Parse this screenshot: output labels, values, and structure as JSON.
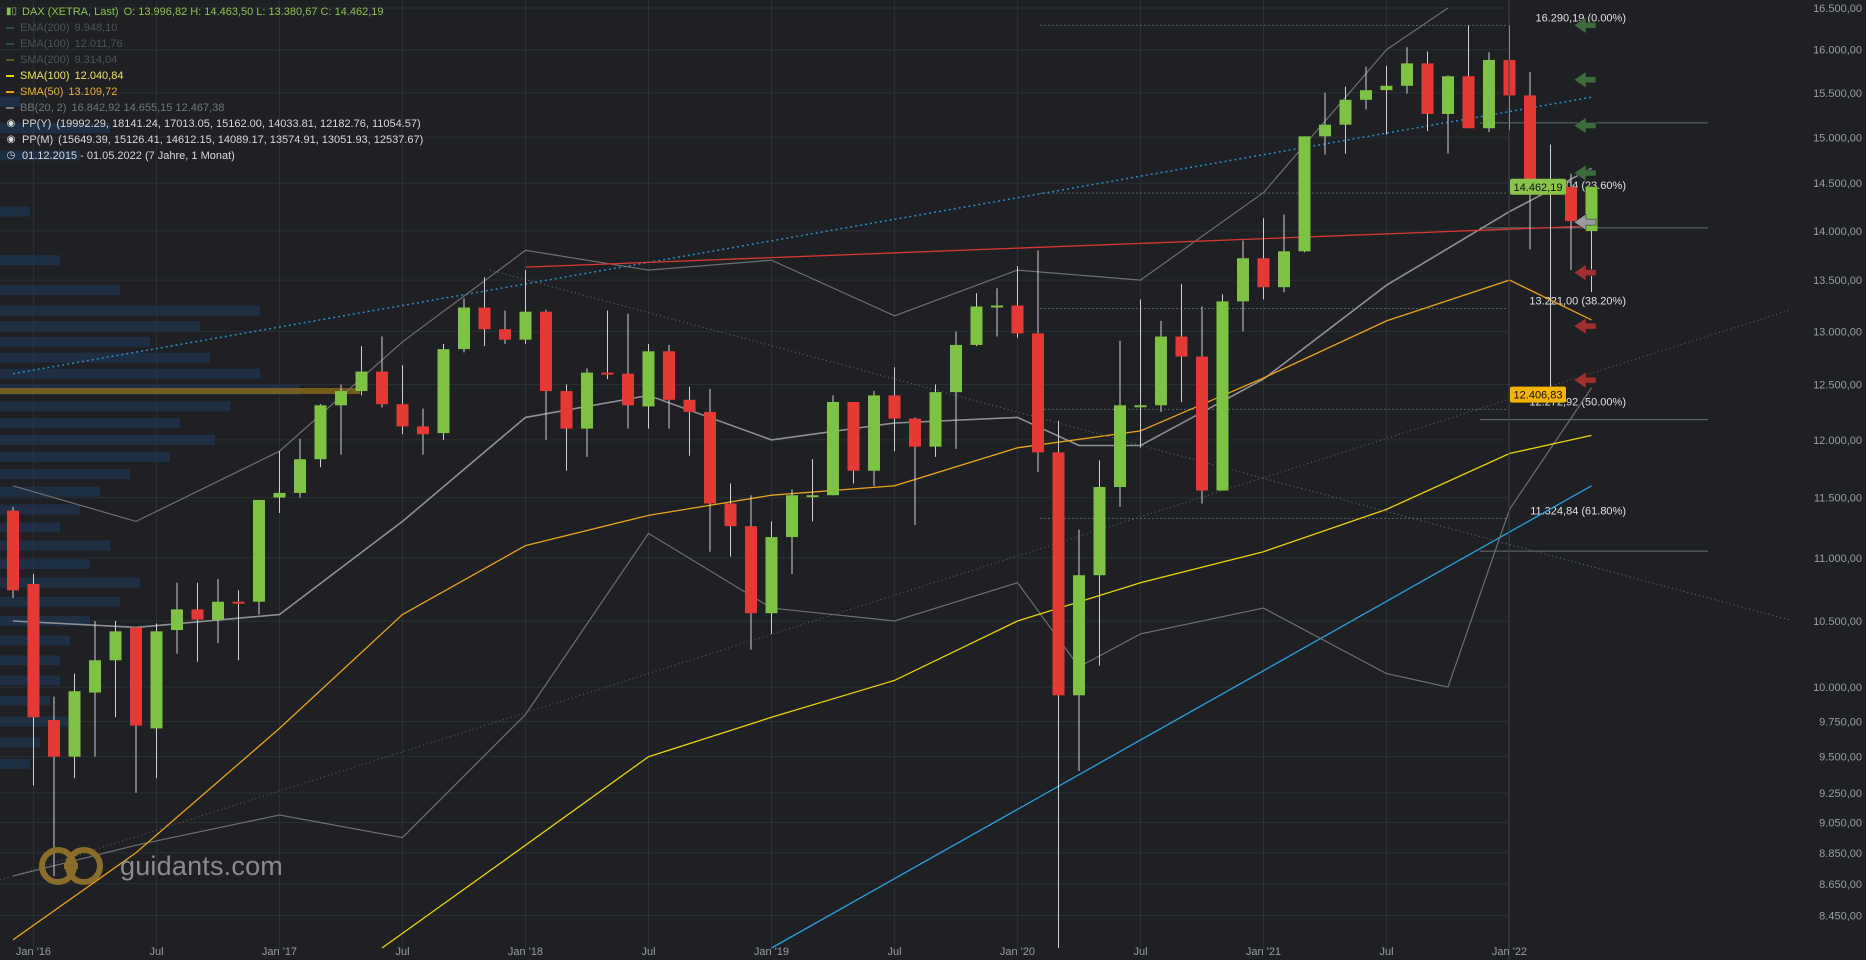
{
  "header": {
    "title": "DAX (XETRA, Last)",
    "ohlc": "O: 13.996,82  H: 14.463,50  L: 13.380,67  C: 14.462,19"
  },
  "legend": [
    {
      "label": "EMA(200)",
      "value": "9.948,10",
      "color": "#2f4a5a",
      "dim": true
    },
    {
      "label": "EMA(100)",
      "value": "12.011,76",
      "color": "#2f4a5a",
      "dim": true
    },
    {
      "label": "SMA(200)",
      "value": "9.314,04",
      "color": "#5c5a1e",
      "dim": true
    },
    {
      "label": "SMA(100)",
      "value": "12.040,84",
      "color": "#e6d200",
      "dim": false
    },
    {
      "label": "SMA(50)",
      "value": "13.109,72",
      "color": "#e8a317",
      "dim": false
    },
    {
      "label": "BB(20, 2)",
      "value": "16.842,92  14.655,15  12.467,38",
      "color": "#7a7a7a",
      "dim": true
    }
  ],
  "pivots": [
    {
      "label": "PP(Y)",
      "value": "(19992.29, 18141.24, 17013.05, 15162.00, 14033.81, 12182.76, 11054.57)"
    },
    {
      "label": "PP(M)",
      "value": "(15649.39, 15126.41, 14612.15, 14089.17, 13574.91, 13051.93, 12537.67)"
    }
  ],
  "period": "01.12.2015 - 01.05.2022   (7 Jahre, 1 Monat)",
  "watermark": "guidants.com",
  "colors": {
    "up": "#7dc242",
    "down": "#e53935",
    "bg": "#1e2024",
    "grid": "#2b2e33"
  },
  "chart_data": {
    "type": "candlestick",
    "title": "DAX (XETRA, Last)",
    "scale": "log",
    "ylim": [
      8250,
      16500
    ],
    "y_ticks": [
      8450,
      8650,
      8850,
      9050,
      9250,
      9500,
      9750,
      10000,
      10500,
      11000,
      11500,
      12000,
      12500,
      13000,
      13500,
      14000,
      14500,
      15000,
      15500,
      16000,
      16500
    ],
    "y_tick_labels": [
      "8.450,00",
      "8.650,00",
      "8.850,00",
      "9.050,00",
      "9.250,00",
      "9.500,00",
      "9.750,00",
      "10.000,00",
      "10.500,00",
      "11.000,00",
      "11.500,00",
      "12.000,00",
      "12.500,00",
      "13.000,00",
      "13.500,00",
      "14.000,00",
      "14.500,00",
      "15.000,00",
      "15.500,00",
      "16.000,00",
      "16.500,00"
    ],
    "x_range": [
      "2015-12",
      "2022-05"
    ],
    "x_labels": [
      {
        "month": "2016-01",
        "label": "Jan '16"
      },
      {
        "month": "2016-07",
        "label": "Jul"
      },
      {
        "month": "2017-01",
        "label": "Jan '17"
      },
      {
        "month": "2017-07",
        "label": "Jul"
      },
      {
        "month": "2018-01",
        "label": "Jan '18"
      },
      {
        "month": "2018-07",
        "label": "Jul"
      },
      {
        "month": "2019-01",
        "label": "Jan '19"
      },
      {
        "month": "2019-07",
        "label": "Jul"
      },
      {
        "month": "2020-01",
        "label": "Jan '20"
      },
      {
        "month": "2020-07",
        "label": "Jul"
      },
      {
        "month": "2021-01",
        "label": "Jan '21"
      },
      {
        "month": "2021-07",
        "label": "Jul"
      },
      {
        "month": "2022-01",
        "label": "Jan '22"
      }
    ],
    "candles": [
      {
        "m": "2015-12",
        "o": 11390,
        "c": 10740,
        "h": 11420,
        "l": 10680
      },
      {
        "m": "2016-01",
        "o": 10790,
        "c": 9780,
        "h": 10870,
        "l": 9300
      },
      {
        "m": "2016-02",
        "o": 9760,
        "c": 9500,
        "h": 9930,
        "l": 8700
      },
      {
        "m": "2016-03",
        "o": 9500,
        "c": 9970,
        "h": 10100,
        "l": 9350
      },
      {
        "m": "2016-04",
        "o": 9960,
        "c": 10200,
        "h": 10500,
        "l": 9500
      },
      {
        "m": "2016-05",
        "o": 10200,
        "c": 10420,
        "h": 10500,
        "l": 9780
      },
      {
        "m": "2016-06",
        "o": 10450,
        "c": 9720,
        "h": 10450,
        "l": 9250
      },
      {
        "m": "2016-07",
        "o": 9700,
        "c": 10420,
        "h": 10480,
        "l": 9350
      },
      {
        "m": "2016-08",
        "o": 10430,
        "c": 10590,
        "h": 10800,
        "l": 10250
      },
      {
        "m": "2016-09",
        "o": 10590,
        "c": 10510,
        "h": 10800,
        "l": 10190
      },
      {
        "m": "2016-10",
        "o": 10510,
        "c": 10650,
        "h": 10830,
        "l": 10330
      },
      {
        "m": "2016-11",
        "o": 10650,
        "c": 10640,
        "h": 10740,
        "l": 10200
      },
      {
        "m": "2016-12",
        "o": 10650,
        "c": 11480,
        "h": 11480,
        "l": 10550
      },
      {
        "m": "2017-01",
        "o": 11500,
        "c": 11540,
        "h": 11900,
        "l": 11370
      },
      {
        "m": "2017-02",
        "o": 11540,
        "c": 11830,
        "h": 12010,
        "l": 11500
      },
      {
        "m": "2017-03",
        "o": 11830,
        "c": 12310,
        "h": 12320,
        "l": 11760
      },
      {
        "m": "2017-04",
        "o": 12310,
        "c": 12440,
        "h": 12500,
        "l": 11870
      },
      {
        "m": "2017-05",
        "o": 12440,
        "c": 12620,
        "h": 12860,
        "l": 12400
      },
      {
        "m": "2017-06",
        "o": 12620,
        "c": 12320,
        "h": 12950,
        "l": 12290
      },
      {
        "m": "2017-07",
        "o": 12320,
        "c": 12120,
        "h": 12680,
        "l": 12050
      },
      {
        "m": "2017-08",
        "o": 12120,
        "c": 12050,
        "h": 12280,
        "l": 11870
      },
      {
        "m": "2017-09",
        "o": 12060,
        "c": 12830,
        "h": 12880,
        "l": 12000
      },
      {
        "m": "2017-10",
        "o": 12830,
        "c": 13230,
        "h": 13320,
        "l": 12800
      },
      {
        "m": "2017-11",
        "o": 13230,
        "c": 13020,
        "h": 13530,
        "l": 12860
      },
      {
        "m": "2017-12",
        "o": 13020,
        "c": 12920,
        "h": 13200,
        "l": 12880
      },
      {
        "m": "2018-01",
        "o": 12920,
        "c": 13190,
        "h": 13600,
        "l": 12880
      },
      {
        "m": "2018-02",
        "o": 13190,
        "c": 12440,
        "h": 13210,
        "l": 12000
      },
      {
        "m": "2018-03",
        "o": 12440,
        "c": 12100,
        "h": 12500,
        "l": 11730
      },
      {
        "m": "2018-04",
        "o": 12100,
        "c": 12610,
        "h": 12650,
        "l": 11850
      },
      {
        "m": "2018-05",
        "o": 12610,
        "c": 12600,
        "h": 13200,
        "l": 12550
      },
      {
        "m": "2018-06",
        "o": 12600,
        "c": 12310,
        "h": 13170,
        "l": 12100
      },
      {
        "m": "2018-07",
        "o": 12300,
        "c": 12810,
        "h": 12880,
        "l": 12100
      },
      {
        "m": "2018-08",
        "o": 12810,
        "c": 12360,
        "h": 12870,
        "l": 12100
      },
      {
        "m": "2018-09",
        "o": 12360,
        "c": 12250,
        "h": 12480,
        "l": 11860
      },
      {
        "m": "2018-10",
        "o": 12250,
        "c": 11450,
        "h": 12460,
        "l": 11050
      },
      {
        "m": "2018-11",
        "o": 11450,
        "c": 11260,
        "h": 11620,
        "l": 11010
      },
      {
        "m": "2018-12",
        "o": 11260,
        "c": 10560,
        "h": 11520,
        "l": 10280
      },
      {
        "m": "2019-01",
        "o": 10560,
        "c": 11170,
        "h": 11300,
        "l": 10400
      },
      {
        "m": "2019-02",
        "o": 11170,
        "c": 11520,
        "h": 11570,
        "l": 10870
      },
      {
        "m": "2019-03",
        "o": 11520,
        "c": 11520,
        "h": 11830,
        "l": 11300
      },
      {
        "m": "2019-04",
        "o": 11520,
        "c": 12340,
        "h": 12400,
        "l": 11520
      },
      {
        "m": "2019-05",
        "o": 12340,
        "c": 11730,
        "h": 12340,
        "l": 11620
      },
      {
        "m": "2019-06",
        "o": 11730,
        "c": 12400,
        "h": 12440,
        "l": 11600
      },
      {
        "m": "2019-07",
        "o": 12400,
        "c": 12190,
        "h": 12660,
        "l": 11900
      },
      {
        "m": "2019-08",
        "o": 12190,
        "c": 11940,
        "h": 12200,
        "l": 11270
      },
      {
        "m": "2019-09",
        "o": 11940,
        "c": 12430,
        "h": 12500,
        "l": 11850
      },
      {
        "m": "2019-10",
        "o": 12430,
        "c": 12870,
        "h": 13000,
        "l": 11920
      },
      {
        "m": "2019-11",
        "o": 12870,
        "c": 13240,
        "h": 13370,
        "l": 12860
      },
      {
        "m": "2019-12",
        "o": 13240,
        "c": 13250,
        "h": 13420,
        "l": 12950
      },
      {
        "m": "2020-01",
        "o": 13250,
        "c": 12980,
        "h": 13640,
        "l": 12940
      },
      {
        "m": "2020-02",
        "o": 12980,
        "c": 11890,
        "h": 13800,
        "l": 11720
      },
      {
        "m": "2020-03",
        "o": 11890,
        "c": 9940,
        "h": 12170,
        "l": 8250
      },
      {
        "m": "2020-04",
        "o": 9940,
        "c": 10860,
        "h": 11230,
        "l": 9400
      },
      {
        "m": "2020-05",
        "o": 10860,
        "c": 11590,
        "h": 11820,
        "l": 10160
      },
      {
        "m": "2020-06",
        "o": 11590,
        "c": 12310,
        "h": 12910,
        "l": 11420
      },
      {
        "m": "2020-07",
        "o": 12310,
        "c": 12310,
        "h": 13310,
        "l": 11930
      },
      {
        "m": "2020-08",
        "o": 12310,
        "c": 12950,
        "h": 13100,
        "l": 12250
      },
      {
        "m": "2020-09",
        "o": 12950,
        "c": 12760,
        "h": 13460,
        "l": 12340
      },
      {
        "m": "2020-10",
        "o": 12760,
        "c": 11560,
        "h": 13240,
        "l": 11450
      },
      {
        "m": "2020-11",
        "o": 11560,
        "c": 13290,
        "h": 13360,
        "l": 11610
      },
      {
        "m": "2020-12",
        "o": 13290,
        "c": 13720,
        "h": 13900,
        "l": 13000
      },
      {
        "m": "2021-01",
        "o": 13720,
        "c": 13430,
        "h": 14130,
        "l": 13310
      },
      {
        "m": "2021-02",
        "o": 13430,
        "c": 13790,
        "h": 14170,
        "l": 13380
      },
      {
        "m": "2021-03",
        "o": 13790,
        "c": 15010,
        "h": 15010,
        "l": 13780
      },
      {
        "m": "2021-04",
        "o": 15010,
        "c": 15140,
        "h": 15500,
        "l": 14810
      },
      {
        "m": "2021-05",
        "o": 15140,
        "c": 15420,
        "h": 15570,
        "l": 14820
      },
      {
        "m": "2021-06",
        "o": 15420,
        "c": 15530,
        "h": 15800,
        "l": 15310
      },
      {
        "m": "2021-07",
        "o": 15530,
        "c": 15580,
        "h": 15810,
        "l": 15030
      },
      {
        "m": "2021-08",
        "o": 15580,
        "c": 15840,
        "h": 16030,
        "l": 15490
      },
      {
        "m": "2021-09",
        "o": 15840,
        "c": 15260,
        "h": 15980,
        "l": 15070
      },
      {
        "m": "2021-10",
        "o": 15260,
        "c": 15690,
        "h": 15700,
        "l": 14820
      },
      {
        "m": "2021-11",
        "o": 15690,
        "c": 15100,
        "h": 16290,
        "l": 15100
      },
      {
        "m": "2021-12",
        "o": 15100,
        "c": 15880,
        "h": 15970,
        "l": 15060
      },
      {
        "m": "2022-01",
        "o": 15880,
        "c": 15470,
        "h": 16290,
        "l": 15080
      },
      {
        "m": "2022-02",
        "o": 15470,
        "c": 14460,
        "h": 15740,
        "l": 13810
      },
      {
        "m": "2022-03",
        "o": 14460,
        "c": 14460,
        "h": 14920,
        "l": 12440
      },
      {
        "m": "2022-04",
        "o": 14460,
        "c": 14100,
        "h": 14600,
        "l": 13600
      },
      {
        "m": "2022-05",
        "o": 13997,
        "c": 14462,
        "h": 14464,
        "l": 13381
      }
    ],
    "fibonacci": [
      {
        "value": 16290.19,
        "label": "16.290,19 (0.00%)"
      },
      {
        "value": 14394.04,
        "label": "14.394,04 (23.60%)"
      },
      {
        "value": 13221.0,
        "label": "13.221,00 (38.20%)"
      },
      {
        "value": 12272.92,
        "label": "12.272,92 (50.00%)"
      },
      {
        "value": 11324.84,
        "label": "11.324,84 (61.80%)"
      }
    ],
    "price_tags": [
      {
        "value": 14462.19,
        "label": "14.462,19",
        "color": "#8bc34a"
      },
      {
        "value": 12406.83,
        "label": "12.406,83",
        "color": "#f5b400"
      }
    ],
    "lines": {
      "sma100": [
        [
          "2015-12",
          8300
        ],
        [
          "2016-06",
          8850
        ],
        [
          "2017-01",
          9700
        ],
        [
          "2017-07",
          10550
        ],
        [
          "2018-01",
          11100
        ],
        [
          "2018-07",
          11350
        ],
        [
          "2019-01",
          11520
        ],
        [
          "2019-07",
          11600
        ],
        [
          "2020-01",
          11930
        ],
        [
          "2020-07",
          12080
        ],
        [
          "2021-01",
          12560
        ],
        [
          "2021-07",
          13100
        ],
        [
          "2022-01",
          13500
        ],
        [
          "2022-05",
          13110
        ]
      ],
      "sma200": [
        [
          "2017-06",
          8250
        ],
        [
          "2018-01",
          8900
        ],
        [
          "2018-07",
          9500
        ],
        [
          "2019-01",
          9780
        ],
        [
          "2019-07",
          10050
        ],
        [
          "2020-01",
          10500
        ],
        [
          "2020-07",
          10800
        ],
        [
          "2021-01",
          11050
        ],
        [
          "2021-07",
          11400
        ],
        [
          "2022-01",
          11880
        ],
        [
          "2022-05",
          12040
        ]
      ],
      "bb_mid": [
        [
          "2015-12",
          10500
        ],
        [
          "2016-06",
          10450
        ],
        [
          "2017-01",
          10550
        ],
        [
          "2017-07",
          11300
        ],
        [
          "2018-01",
          12200
        ],
        [
          "2018-07",
          12400
        ],
        [
          "2019-01",
          12000
        ],
        [
          "2019-07",
          12150
        ],
        [
          "2020-01",
          12200
        ],
        [
          "2020-04",
          11950
        ],
        [
          "2020-07",
          11950
        ],
        [
          "2021-01",
          12550
        ],
        [
          "2021-07",
          13450
        ],
        [
          "2022-01",
          14200
        ],
        [
          "2022-05",
          14660
        ]
      ],
      "bb_upper": [
        [
          "2015-12",
          11600
        ],
        [
          "2016-06",
          11300
        ],
        [
          "2017-01",
          11900
        ],
        [
          "2017-07",
          12900
        ],
        [
          "2018-01",
          13800
        ],
        [
          "2018-07",
          13600
        ],
        [
          "2019-01",
          13700
        ],
        [
          "2019-07",
          13150
        ],
        [
          "2020-01",
          13600
        ],
        [
          "2020-07",
          13500
        ],
        [
          "2021-01",
          14400
        ],
        [
          "2021-07",
          16000
        ],
        [
          "2021-10",
          16500
        ]
      ],
      "bb_lower": [
        [
          "2015-12",
          8700
        ],
        [
          "2016-06",
          8900
        ],
        [
          "2017-01",
          9100
        ],
        [
          "2017-07",
          8950
        ],
        [
          "2018-01",
          9800
        ],
        [
          "2018-07",
          11200
        ],
        [
          "2019-01",
          10600
        ],
        [
          "2019-07",
          10500
        ],
        [
          "2020-01",
          10800
        ],
        [
          "2020-04",
          10150
        ],
        [
          "2020-07",
          10400
        ],
        [
          "2021-01",
          10600
        ],
        [
          "2021-07",
          10100
        ],
        [
          "2021-10",
          10000
        ],
        [
          "2022-01",
          11400
        ],
        [
          "2022-05",
          12470
        ]
      ],
      "trend_blue_dotted": [
        [
          "2015-12",
          12600
        ],
        [
          "2022-05",
          15450
        ]
      ],
      "trend_red": [
        [
          "2018-01",
          13630
        ],
        [
          "2022-05",
          14050
        ]
      ],
      "trend_blue_solid": [
        [
          "2019-01",
          8250
        ],
        [
          "2022-05",
          11600
        ]
      ]
    }
  }
}
